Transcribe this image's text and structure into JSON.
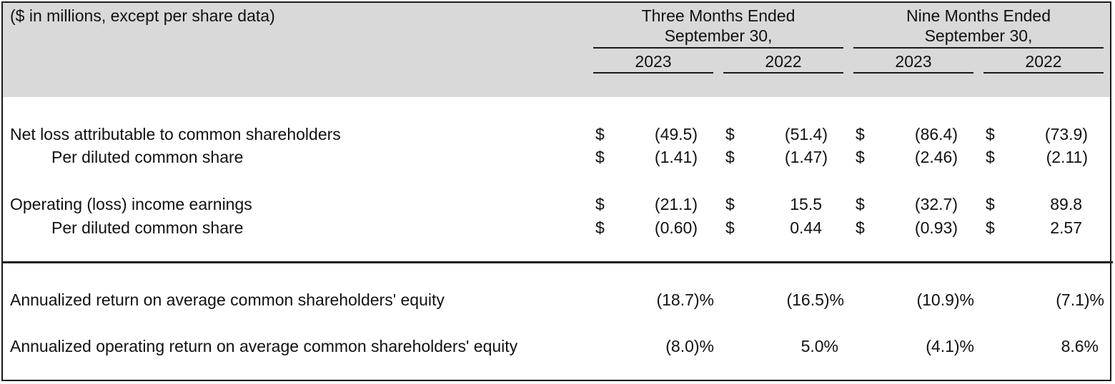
{
  "header": {
    "units_note": "($ in millions, except per share data)",
    "three_months": {
      "line1": "Three Months Ended",
      "line2": "September 30,"
    },
    "nine_months": {
      "line1": "Nine Months Ended",
      "line2": "September 30,"
    },
    "years": [
      "2023",
      "2022",
      "2023",
      "2022"
    ]
  },
  "currency_symbol": "$",
  "rows": [
    {
      "label": "Net loss attributable to common shareholders",
      "values": [
        "(49.5)",
        "(51.4)",
        "(86.4)",
        "(73.9)"
      ]
    },
    {
      "label": "Per diluted common share",
      "values": [
        "(1.41)",
        "(1.47)",
        "(2.46)",
        "(2.11)"
      ]
    },
    {
      "label": "Operating (loss) income earnings",
      "values": [
        "(21.1)",
        "15.5",
        "(32.7)",
        "89.8"
      ]
    },
    {
      "label": "Per diluted common share",
      "values": [
        "(0.60)",
        "0.44",
        "(0.93)",
        "2.57"
      ]
    }
  ],
  "returns": [
    {
      "label": "Annualized return on average common shareholders' equity",
      "values": [
        "(18.7)%",
        "(16.5)%",
        "(10.9)%",
        "(7.1)%"
      ]
    },
    {
      "label": "Annualized operating return on average common shareholders' equity",
      "values": [
        "(8.0)%",
        "5.0%",
        "(4.1)%",
        "8.6%"
      ]
    }
  ]
}
